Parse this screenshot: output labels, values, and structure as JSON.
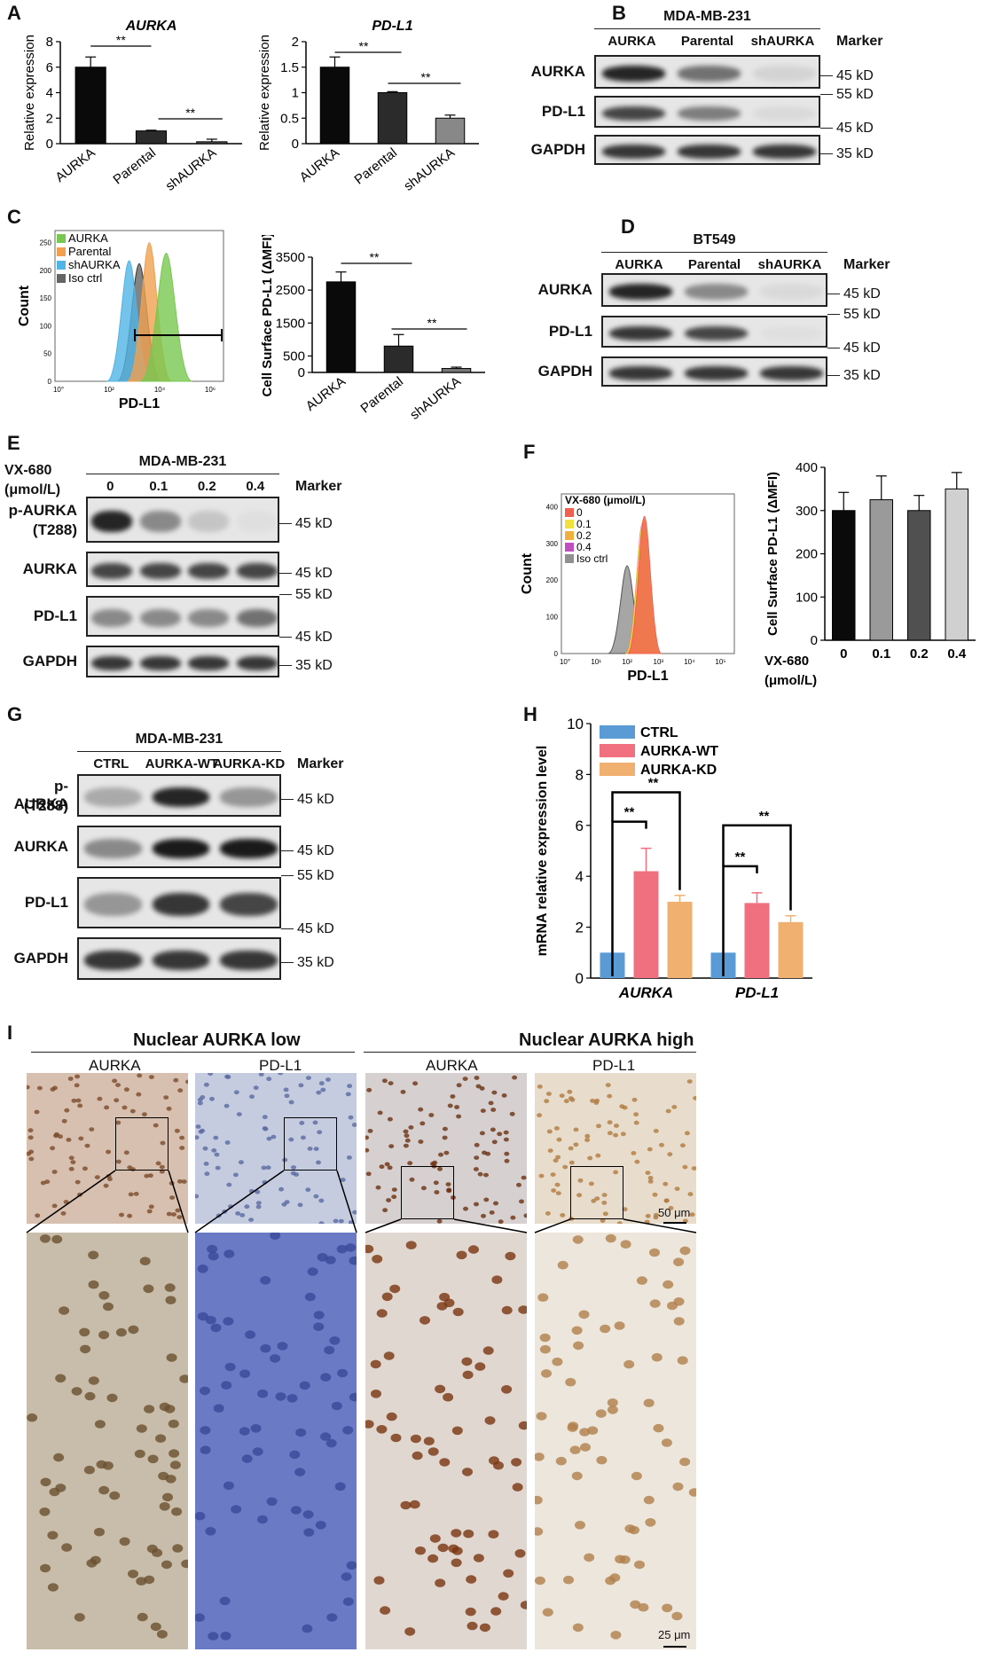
{
  "panels": {
    "A": {
      "label": "A",
      "ylabel": "Relative expression",
      "sig": "**",
      "chart_data": [
        {
          "type": "bar",
          "title": "AURKA",
          "categories": [
            "AURKA",
            "Parental",
            "shAURKA"
          ],
          "values": [
            6.0,
            1.0,
            0.15
          ],
          "errors": [
            0.8,
            0.05,
            0.2
          ],
          "ylabel": "Relative expression",
          "ylim": [
            0,
            8
          ],
          "yticks": [
            "0",
            "2",
            "4",
            "6",
            "8"
          ],
          "colors": [
            "#0a0a0a",
            "#2b2b2b",
            "#555555"
          ]
        },
        {
          "type": "bar",
          "title": "PD-L1",
          "categories": [
            "AURKA",
            "Parental",
            "shAURKA"
          ],
          "values": [
            1.5,
            1.0,
            0.5
          ],
          "errors": [
            0.2,
            0.02,
            0.06
          ],
          "ylabel": "Relative expression",
          "ylim": [
            0,
            2
          ],
          "yticks": [
            "0",
            "0.5",
            "1",
            "1.5",
            "2"
          ],
          "colors": [
            "#0a0a0a",
            "#2b2b2b",
            "#888888"
          ]
        }
      ]
    },
    "B": {
      "label": "B",
      "cell_line": "MDA-MB-231",
      "lanes": [
        "AURKA",
        "Parental",
        "shAURKA"
      ],
      "marker_header": "Marker",
      "rows": [
        {
          "name": "AURKA",
          "markers": [
            "45 kD"
          ],
          "bands": [
            0.95,
            0.7,
            0.2
          ]
        },
        {
          "name": "PD-L1",
          "markers": [
            "55 kD",
            "45 kD"
          ],
          "bands": [
            0.85,
            0.65,
            0.15
          ]
        },
        {
          "name": "GAPDH",
          "markers": [
            "35 kD"
          ],
          "bands": [
            0.9,
            0.9,
            0.9
          ]
        }
      ]
    },
    "C": {
      "label": "C",
      "flow": {
        "legend": [
          "AURKA",
          "Parental",
          "shAURKA",
          "Iso ctrl"
        ],
        "colors": [
          "#78c850",
          "#f0a050",
          "#50b4e6",
          "#646464"
        ],
        "xlabel": "PD-L1",
        "ylabel": "Count",
        "yticks": [
          "0",
          "50",
          "100",
          "150",
          "200",
          "250"
        ],
        "xticks": [
          "10°",
          "10²",
          "10⁴",
          "10⁶"
        ]
      },
      "chart_data": {
        "type": "bar",
        "categories": [
          "AURKA",
          "Parental",
          "shAURKA"
        ],
        "values": [
          2750,
          800,
          120
        ],
        "errors": [
          300,
          350,
          40
        ],
        "ylabel": "Cell Surface PD-L1 (ΔMFI)",
        "ylim": [
          0,
          3500
        ],
        "yticks": [
          "0",
          "500",
          "1500",
          "2500",
          "3500"
        ],
        "colors": [
          "#0a0a0a",
          "#2b2b2b",
          "#777777"
        ]
      },
      "sig": "**"
    },
    "D": {
      "label": "D",
      "cell_line": "BT549",
      "lanes": [
        "AURKA",
        "Parental",
        "shAURKA"
      ],
      "marker_header": "Marker",
      "rows": [
        {
          "name": "AURKA",
          "markers": [
            "45 kD"
          ],
          "bands": [
            0.95,
            0.6,
            0.15
          ]
        },
        {
          "name": "PD-L1",
          "markers": [
            "55 kD",
            "45 kD"
          ],
          "bands": [
            0.9,
            0.85,
            0.1
          ]
        },
        {
          "name": "GAPDH",
          "markers": [
            "35 kD"
          ],
          "bands": [
            0.9,
            0.9,
            0.9
          ]
        }
      ]
    },
    "E": {
      "label": "E",
      "treatment": "VX-680",
      "unit": "(μmol/L)",
      "cell_line": "MDA-MB-231",
      "lanes": [
        "0",
        "0.1",
        "0.2",
        "0.4"
      ],
      "marker_header": "Marker",
      "rows": [
        {
          "name": "p-AURKA",
          "name2": "(T288)",
          "markers": [
            "45 kD"
          ],
          "bands": [
            0.95,
            0.6,
            0.3,
            0.1
          ]
        },
        {
          "name": "AURKA",
          "markers": [
            "45 kD"
          ],
          "bands": [
            0.85,
            0.85,
            0.85,
            0.85
          ]
        },
        {
          "name": "PD-L1",
          "markers": [
            "55 kD",
            "45 kD"
          ],
          "bands": [
            0.6,
            0.6,
            0.6,
            0.7
          ]
        },
        {
          "name": "GAPDH",
          "markers": [
            "35 kD"
          ],
          "bands": [
            0.9,
            0.9,
            0.9,
            0.9
          ]
        }
      ]
    },
    "F": {
      "label": "F",
      "flow": {
        "legend_title": "VX-680 (μmol/L)",
        "legend": [
          "0",
          "0.1",
          "0.2",
          "0.4",
          "Iso ctrl"
        ],
        "colors": [
          "#f06050",
          "#f0e040",
          "#f0b040",
          "#c050c0",
          "#909090"
        ],
        "xlabel": "PD-L1",
        "ylabel": "Count",
        "yticks": [
          "0",
          "100",
          "200",
          "300",
          "400"
        ],
        "xticks": [
          "10°",
          "10¹",
          "10²",
          "10³",
          "10⁴",
          "10⁵"
        ]
      },
      "chart_data": {
        "type": "bar",
        "categories": [
          "0",
          "0.1",
          "0.2",
          "0.4"
        ],
        "values": [
          300,
          325,
          300,
          350
        ],
        "errors": [
          42,
          55,
          35,
          38
        ],
        "ylabel": "Cell Surface PD-L1 (ΔMFI)",
        "xlabel": "VX-680",
        "xunit": "(μmol/L)",
        "ylim": [
          0,
          400
        ],
        "yticks": [
          "0",
          "100",
          "200",
          "300",
          "400"
        ],
        "colors": [
          "#0a0a0a",
          "#9a9a9a",
          "#505050",
          "#d0d0d0"
        ]
      }
    },
    "G": {
      "label": "G",
      "cell_line": "MDA-MB-231",
      "lanes": [
        "CTRL",
        "AURKA-WT",
        "AURKA-KD"
      ],
      "marker_header": "Marker",
      "rows": [
        {
          "name": "p-AURKA",
          "name2": "(T288)",
          "markers": [
            "45 kD"
          ],
          "bands": [
            0.45,
            0.95,
            0.55
          ]
        },
        {
          "name": "AURKA",
          "markers": [
            "45 kD"
          ],
          "bands": [
            0.6,
            0.98,
            0.98
          ]
        },
        {
          "name": "PD-L1",
          "markers": [
            "55 kD",
            "45 kD"
          ],
          "bands": [
            0.55,
            0.9,
            0.85
          ]
        },
        {
          "name": "GAPDH",
          "markers": [
            "35 kD"
          ],
          "bands": [
            0.9,
            0.9,
            0.9
          ]
        }
      ]
    },
    "H": {
      "label": "H",
      "chart_data": {
        "type": "bar",
        "categories": [
          "AURKA",
          "PD-L1"
        ],
        "series": [
          {
            "name": "CTRL",
            "values": [
              1.0,
              1.0
            ],
            "errors": [
              0,
              0
            ],
            "color": "#5b9bd5"
          },
          {
            "name": "AURKA-WT",
            "values": [
              4.2,
              2.95
            ],
            "errors": [
              0.9,
              0.4
            ],
            "color": "#f07080"
          },
          {
            "name": "AURKA-KD",
            "values": [
              3.0,
              2.2
            ],
            "errors": [
              0.25,
              0.25
            ],
            "color": "#f0b070"
          }
        ],
        "ylabel": "mRNA relative expression level",
        "ylim": [
          0,
          10
        ],
        "yticks": [
          "0",
          "2",
          "4",
          "6",
          "8",
          "10"
        ]
      },
      "sig": "**"
    },
    "I": {
      "label": "I",
      "groups": [
        "Nuclear AURKA low",
        "Nuclear AURKA high"
      ],
      "columns": [
        "AURKA",
        "PD-L1",
        "AURKA",
        "PD-L1"
      ],
      "scale_top": "50 μm",
      "scale_bottom": "25 μm"
    }
  }
}
